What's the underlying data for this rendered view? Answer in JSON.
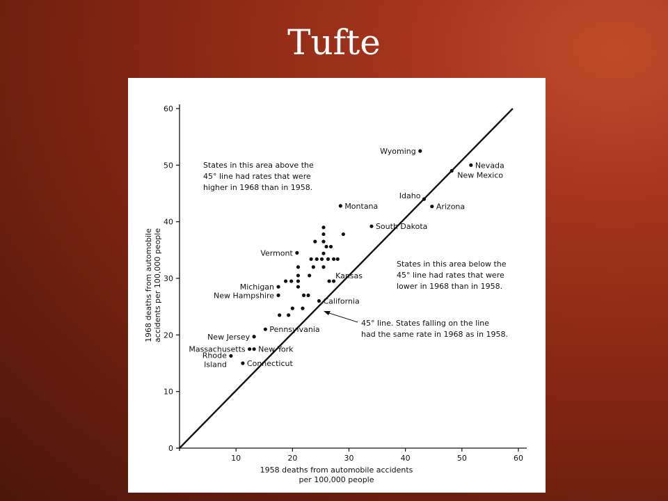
{
  "slide": {
    "title": "Tufte"
  },
  "chart_data": {
    "type": "scatter",
    "xlabel_lines": [
      "1958 deaths from automobile accidents",
      "per 100,000 people"
    ],
    "ylabel_lines": [
      "1968 deaths from automobile",
      "accidents per 100,000 people"
    ],
    "xlim": [
      0,
      60
    ],
    "ylim": [
      0,
      60
    ],
    "xticks": [
      10,
      20,
      30,
      40,
      50,
      60
    ],
    "yticks": [
      0,
      10,
      20,
      30,
      40,
      50,
      60
    ],
    "grid": false,
    "reference_line": {
      "x": [
        0,
        59
      ],
      "y": [
        0,
        60
      ]
    },
    "points": [
      {
        "x": 42.6,
        "y": 52.5,
        "label": "Wyoming",
        "side": "left"
      },
      {
        "x": 51.6,
        "y": 50.0,
        "label": "Nevada",
        "side": "right"
      },
      {
        "x": 48.2,
        "y": 49.0,
        "label": "New Mexico",
        "side": "right-below"
      },
      {
        "x": 43.3,
        "y": 44.0,
        "label": "Idaho",
        "side": "left-above"
      },
      {
        "x": 44.7,
        "y": 42.7,
        "label": "Arizona",
        "side": "right"
      },
      {
        "x": 28.5,
        "y": 42.8,
        "label": "Montana",
        "side": "right"
      },
      {
        "x": 34.0,
        "y": 39.2,
        "label": "South Dakota",
        "side": "right"
      },
      {
        "x": 20.8,
        "y": 34.5,
        "label": "Vermont",
        "side": "left"
      },
      {
        "x": 26.5,
        "y": 29.5,
        "label": "Kansas",
        "side": "right-above"
      },
      {
        "x": 17.5,
        "y": 28.5,
        "label": "Michigan",
        "side": "left"
      },
      {
        "x": 17.5,
        "y": 27.0,
        "label": "New Hampshire",
        "side": "left"
      },
      {
        "x": 24.7,
        "y": 26.0,
        "label": "California",
        "side": "right"
      },
      {
        "x": 15.2,
        "y": 21.0,
        "label": "Pennsylvania",
        "side": "right"
      },
      {
        "x": 13.2,
        "y": 19.7,
        "label": "New Jersey",
        "side": "left"
      },
      {
        "x": 13.2,
        "y": 17.5,
        "label": "New York",
        "side": "right"
      },
      {
        "x": 12.4,
        "y": 17.5,
        "label": "Massachusetts",
        "side": "left"
      },
      {
        "x": 11.2,
        "y": 15.0,
        "label": "Connecticut",
        "side": "right"
      },
      {
        "x": 9.1,
        "y": 16.3,
        "label": "Rhode Island",
        "side": "rhode"
      },
      {
        "x": 25.5,
        "y": 39.0
      },
      {
        "x": 25.5,
        "y": 37.8
      },
      {
        "x": 24.0,
        "y": 36.5
      },
      {
        "x": 25.5,
        "y": 36.5
      },
      {
        "x": 26.0,
        "y": 35.6
      },
      {
        "x": 26.8,
        "y": 35.6
      },
      {
        "x": 29.0,
        "y": 37.8
      },
      {
        "x": 25.5,
        "y": 34.4
      },
      {
        "x": 23.3,
        "y": 33.4
      },
      {
        "x": 24.3,
        "y": 33.4
      },
      {
        "x": 25.2,
        "y": 33.4
      },
      {
        "x": 26.3,
        "y": 33.4
      },
      {
        "x": 27.3,
        "y": 33.4
      },
      {
        "x": 28.0,
        "y": 33.4
      },
      {
        "x": 21.0,
        "y": 32.0
      },
      {
        "x": 23.7,
        "y": 32.0
      },
      {
        "x": 25.5,
        "y": 32.0
      },
      {
        "x": 23.0,
        "y": 30.5
      },
      {
        "x": 21.0,
        "y": 30.5
      },
      {
        "x": 18.8,
        "y": 29.5
      },
      {
        "x": 19.8,
        "y": 29.5
      },
      {
        "x": 21.0,
        "y": 29.5
      },
      {
        "x": 21.0,
        "y": 28.5
      },
      {
        "x": 22.0,
        "y": 27.0
      },
      {
        "x": 22.8,
        "y": 27.0
      },
      {
        "x": 27.3,
        "y": 29.5
      },
      {
        "x": 20.0,
        "y": 24.7
      },
      {
        "x": 21.8,
        "y": 24.7
      },
      {
        "x": 17.7,
        "y": 23.5
      },
      {
        "x": 19.3,
        "y": 23.5
      }
    ],
    "annotations": {
      "above": [
        "States in this area above the",
        "45° line had rates that were",
        "higher in 1968 than in 1958."
      ],
      "below": [
        "States in this area below the",
        "45° line had rates that were",
        "lower in 1968 than in 1958."
      ],
      "line": [
        "45° line. States falling on the line",
        "had the same rate in 1968 as in 1958."
      ]
    }
  }
}
